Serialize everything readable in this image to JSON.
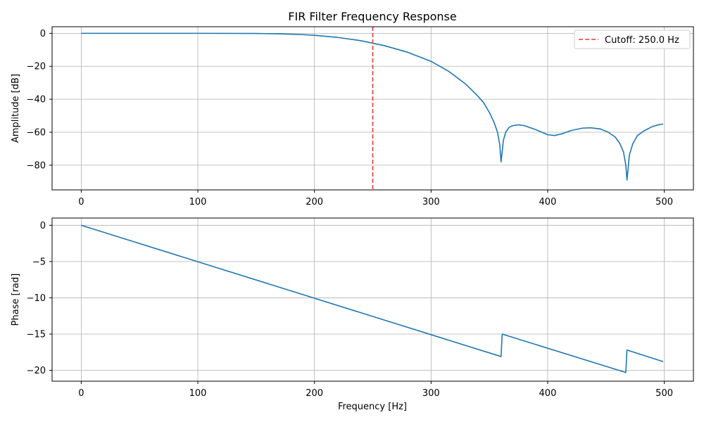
{
  "chart_data": [
    {
      "type": "line",
      "title": "FIR Filter Frequency Response",
      "xlabel": "",
      "ylabel": "Amplitude [dB]",
      "xlim": [
        -25,
        525
      ],
      "ylim": [
        -95,
        4
      ],
      "grid": true,
      "legend": {
        "position": "top-right",
        "entries": [
          "Cutoff: 250.0 Hz"
        ]
      },
      "x_ticks": [
        0,
        100,
        200,
        300,
        400,
        500
      ],
      "y_ticks": [
        0,
        -20,
        -40,
        -60,
        -80
      ],
      "series": [
        {
          "color": "#1f77b4",
          "points": [
            [
              0,
              0
            ],
            [
              50,
              0
            ],
            [
              100,
              0
            ],
            [
              150,
              -0.1
            ],
            [
              170,
              -0.3
            ],
            [
              190,
              -0.8
            ],
            [
              200,
              -1.2
            ],
            [
              220,
              -2.5
            ],
            [
              240,
              -4.5
            ],
            [
              250,
              -6
            ],
            [
              260,
              -7.5
            ],
            [
              280,
              -11.5
            ],
            [
              300,
              -17
            ],
            [
              315,
              -23
            ],
            [
              330,
              -31
            ],
            [
              340,
              -38
            ],
            [
              345,
              -42
            ],
            [
              350,
              -48
            ],
            [
              354,
              -54
            ],
            [
              357,
              -60
            ],
            [
              359,
              -68
            ],
            [
              360,
              -78
            ],
            [
              361,
              -72
            ],
            [
              362,
              -65
            ],
            [
              364,
              -60
            ],
            [
              367,
              -57
            ],
            [
              370,
              -56
            ],
            [
              375,
              -55.5
            ],
            [
              380,
              -56
            ],
            [
              390,
              -58.5
            ],
            [
              400,
              -61.5
            ],
            [
              406,
              -62
            ],
            [
              412,
              -61
            ],
            [
              420,
              -59
            ],
            [
              430,
              -57.5
            ],
            [
              437,
              -57.3
            ],
            [
              445,
              -58
            ],
            [
              452,
              -60
            ],
            [
              458,
              -63
            ],
            [
              462,
              -67
            ],
            [
              465,
              -72
            ],
            [
              467,
              -80
            ],
            [
              468,
              -89
            ],
            [
              469,
              -82
            ],
            [
              470,
              -74
            ],
            [
              473,
              -67
            ],
            [
              477,
              -62
            ],
            [
              483,
              -59
            ],
            [
              490,
              -56.5
            ],
            [
              495,
              -55.5
            ],
            [
              499,
              -55
            ]
          ]
        },
        {
          "name": "Cutoff: 250.0 Hz",
          "color": "#e8393a",
          "style": "dashed",
          "vertical_line_x": 250
        }
      ]
    },
    {
      "type": "line",
      "title": "",
      "xlabel": "Frequency [Hz]",
      "ylabel": "Phase [rad]",
      "xlim": [
        -25,
        525
      ],
      "ylim": [
        -21.5,
        1
      ],
      "grid": true,
      "x_ticks": [
        0,
        100,
        200,
        300,
        400,
        500
      ],
      "y_ticks": [
        0,
        -5,
        -10,
        -15,
        -20
      ],
      "series": [
        {
          "color": "#1f77b4",
          "points": [
            [
              0,
              0
            ],
            [
              360,
              -18.1
            ],
            [
              361,
              -15
            ],
            [
              467,
              -20.3
            ],
            [
              468,
              -17.2
            ],
            [
              499,
              -18.8
            ]
          ]
        }
      ]
    }
  ]
}
